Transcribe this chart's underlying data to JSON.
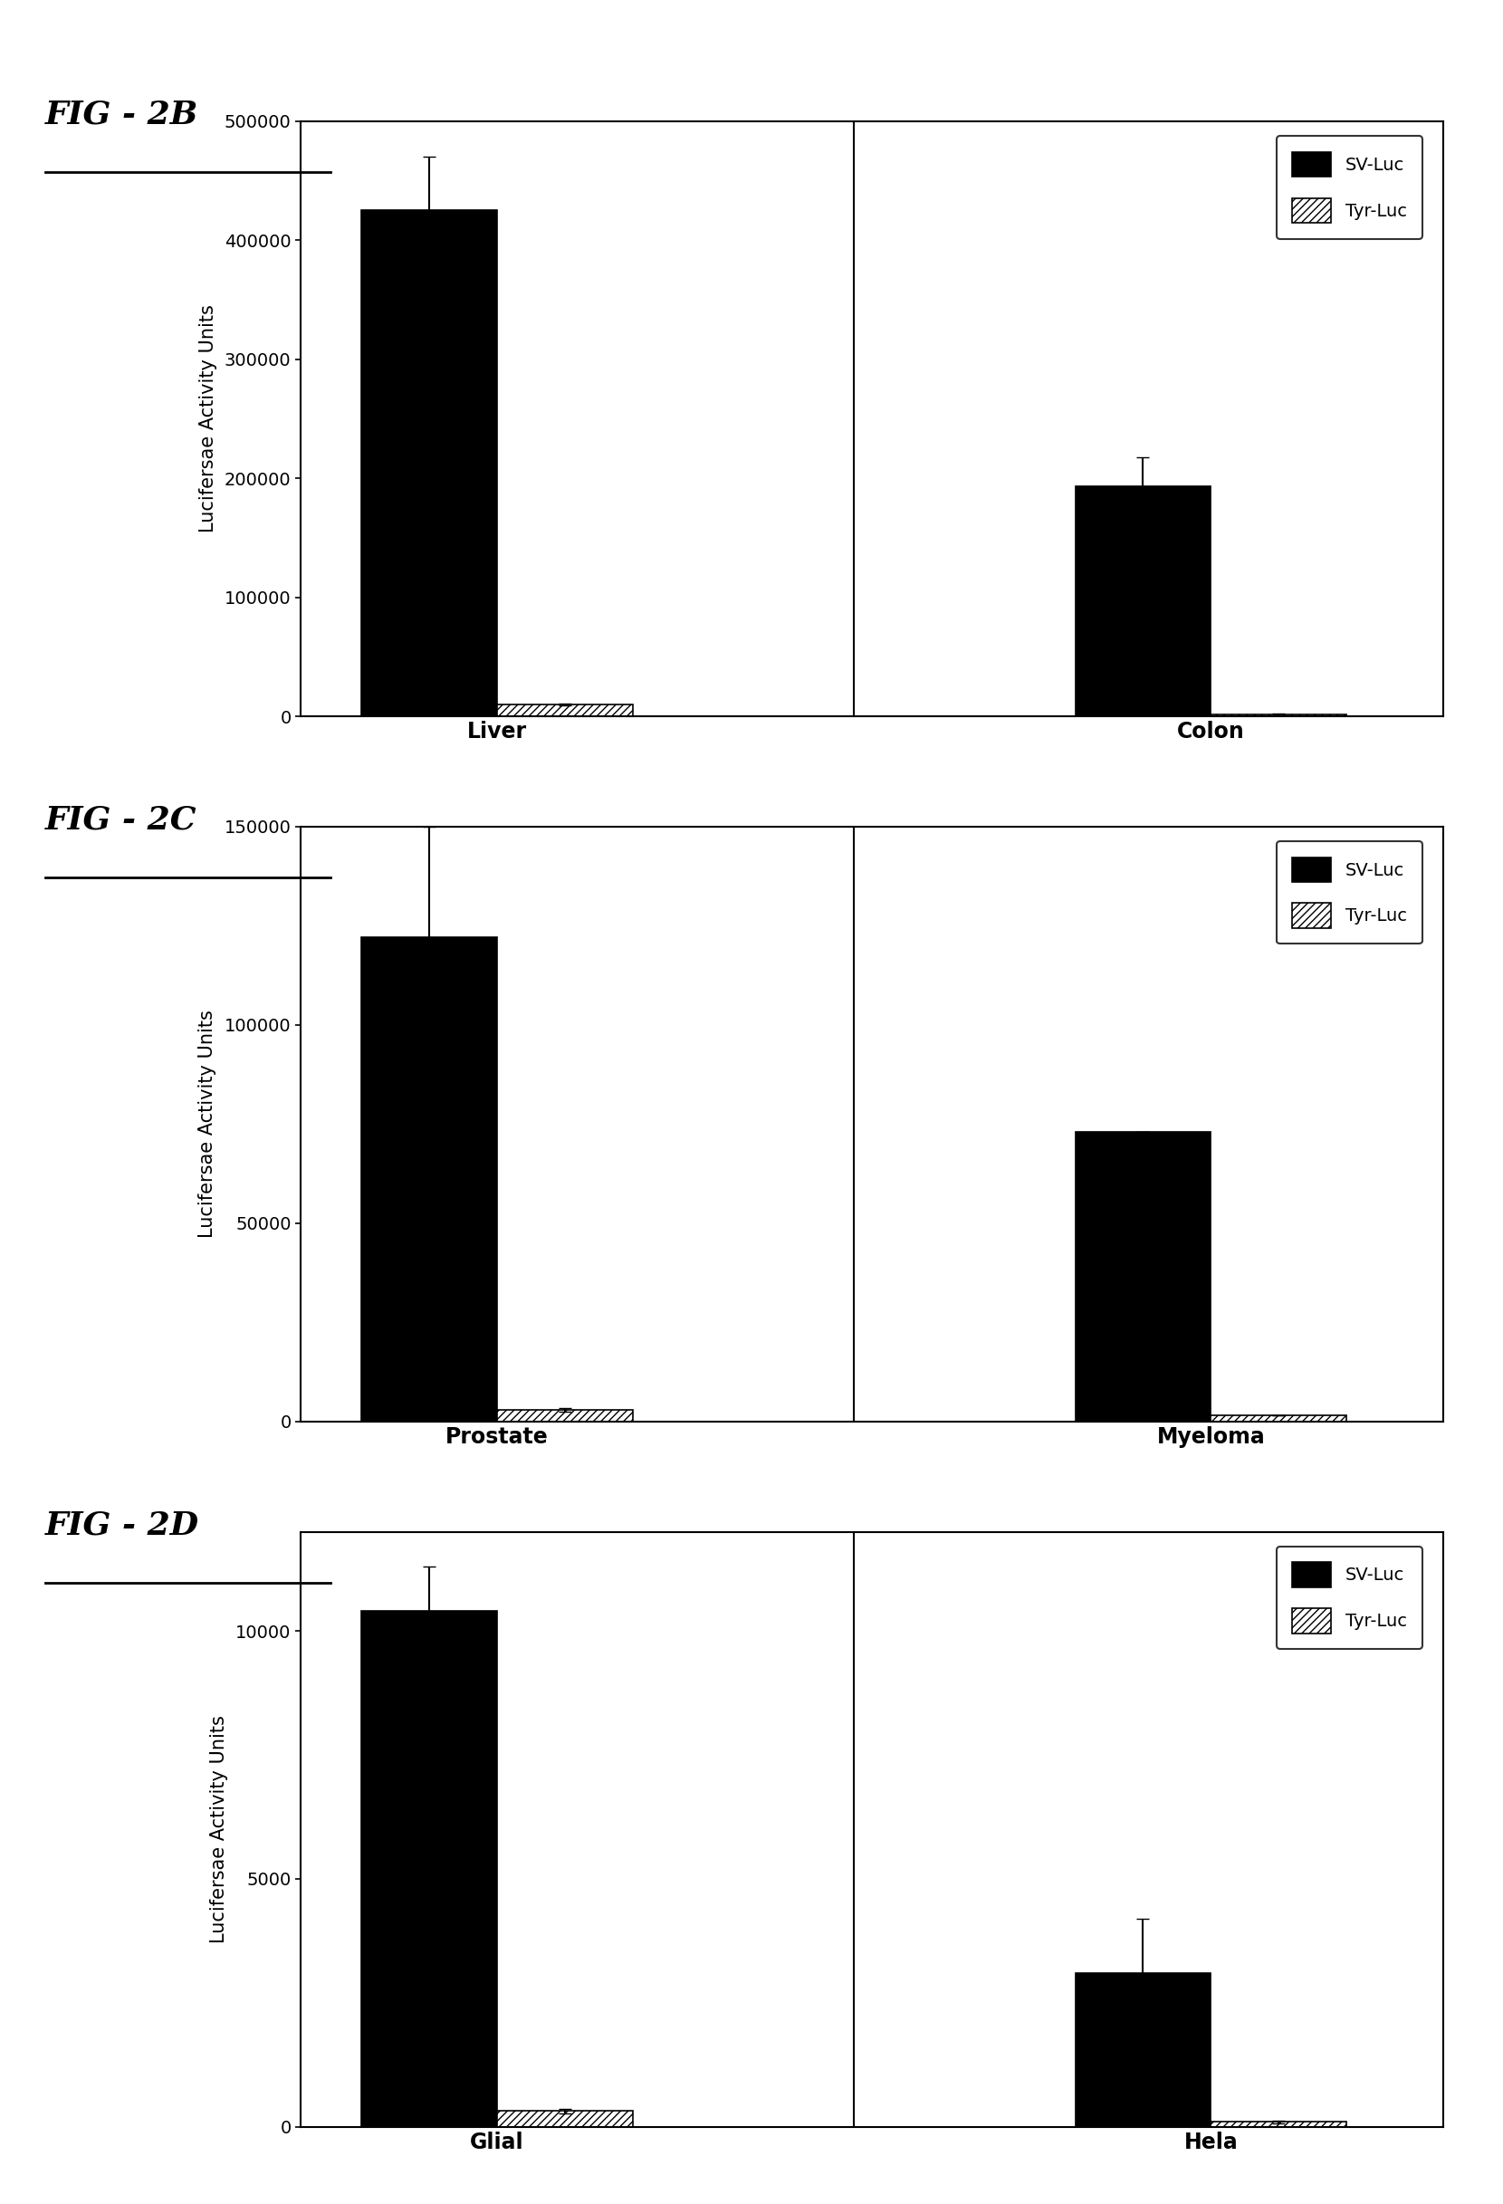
{
  "fig2b": {
    "title": "FIG - 2B",
    "groups": [
      "Liver",
      "Colon"
    ],
    "sv_luc": [
      425000,
      193000
    ],
    "tyr_luc": [
      10000,
      1500
    ],
    "sv_err": [
      45000,
      25000
    ],
    "tyr_err": [
      1000,
      500
    ],
    "ylim": [
      0,
      500000
    ],
    "yticks": [
      0,
      100000,
      200000,
      300000,
      400000,
      500000
    ],
    "ylabel": "Lucifersae Activity Units"
  },
  "fig2c": {
    "title": "FIG - 2C",
    "groups": [
      "Prostate",
      "Myeloma"
    ],
    "sv_luc": [
      122000,
      73000
    ],
    "tyr_luc": [
      3000,
      1500
    ],
    "sv_err": [
      28000,
      0
    ],
    "tyr_err": [
      500,
      0
    ],
    "ylim": [
      0,
      150000
    ],
    "yticks": [
      0,
      50000,
      100000,
      150000
    ],
    "ylabel": "Lucifersae Activity Units"
  },
  "fig2d": {
    "title": "FIG - 2D",
    "groups": [
      "Glial",
      "Hela"
    ],
    "sv_luc": [
      10400,
      3100
    ],
    "tyr_luc": [
      320,
      100
    ],
    "sv_err": [
      900,
      1100
    ],
    "tyr_err": [
      50,
      30
    ],
    "ylim": [
      0,
      12000
    ],
    "yticks": [
      0,
      5000,
      10000
    ],
    "ylabel": "Lucifersae Activity Units"
  },
  "bar_width": 0.38,
  "sv_color": "#000000",
  "tyr_color": "#ffffff",
  "tyr_hatch": "////",
  "legend_sv": "SV-Luc",
  "legend_tyr": "Tyr-Luc",
  "bg_color": "#ffffff",
  "title_fontsize": 26,
  "label_fontsize": 15,
  "tick_fontsize": 14,
  "legend_fontsize": 14,
  "group_label_fontsize": 17
}
